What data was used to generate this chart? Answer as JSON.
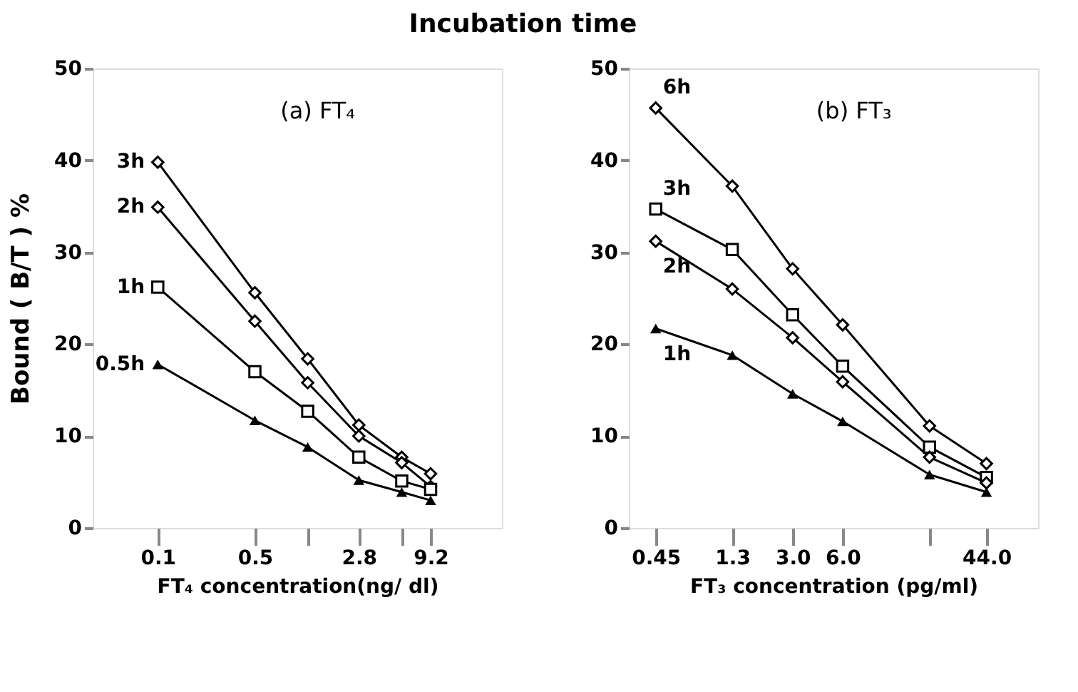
{
  "chart_data": [
    {
      "type": "line",
      "title": "Incubation time",
      "annotations": [
        "(a) FT₄"
      ],
      "xlabel": "FT₄ concentration(ng/ dl)",
      "ylabel": "Bound ( B/T ) %",
      "log": "x",
      "xlim": [
        0.034,
        30
      ],
      "xticks": [
        0.1,
        0.5,
        {
          "value": 1.2,
          "label": null
        },
        2.8,
        {
          "value": 5.7,
          "label": null
        },
        9.2
      ],
      "ylim": [
        0,
        50
      ],
      "yticks": [
        0,
        10,
        20,
        30,
        40,
        50
      ],
      "grid": false,
      "legend": false,
      "line_style": "solid",
      "x": [
        0.1,
        0.5,
        1.2,
        2.8,
        5.7,
        9.2
      ],
      "series": [
        {
          "name": "3h",
          "color": "#000000",
          "marker": "diamond",
          "values": [
            39.8,
            25.6,
            18.4,
            11.2,
            7.7,
            5.9
          ]
        },
        {
          "name": "2h",
          "color": "#000000",
          "marker": "diamond",
          "values": [
            34.9,
            22.5,
            15.8,
            10.0,
            7.1,
            4.5
          ]
        },
        {
          "name": "1h",
          "color": "#000000",
          "marker": "square",
          "values": [
            26.2,
            17.0,
            12.7,
            7.7,
            5.1,
            4.2
          ]
        },
        {
          "name": "0.5h",
          "color": "#000000",
          "marker": "triangle",
          "values": [
            17.8,
            11.7,
            8.8,
            5.2,
            3.9,
            3.0
          ]
        }
      ]
    },
    {
      "type": "line",
      "annotations": [
        "(b) FT₃"
      ],
      "xlabel": "FT₃ concentration (pg/ml)",
      "log": "x",
      "xlim": [
        0.31,
        90
      ],
      "xticks": [
        0.45,
        1.3,
        {
          "value": 3.0,
          "label": "3.0"
        },
        {
          "value": 6.0,
          "label": "6.0"
        },
        {
          "value": 20,
          "label": null
        },
        {
          "value": 44.0,
          "label": "44.0"
        }
      ],
      "ylim": [
        0,
        50
      ],
      "yticks": [
        0,
        10,
        20,
        30,
        40,
        50
      ],
      "grid": false,
      "legend": false,
      "line_style": "solid",
      "x": [
        0.45,
        1.3,
        3.0,
        6.0,
        20,
        44.0
      ],
      "series": [
        {
          "name": "6h",
          "color": "#000000",
          "marker": "diamond",
          "values": [
            45.7,
            37.2,
            28.2,
            22.1,
            11.1,
            7.0
          ]
        },
        {
          "name": "3h",
          "color": "#000000",
          "marker": "square",
          "values": [
            34.7,
            30.3,
            23.2,
            17.6,
            8.8,
            5.5
          ]
        },
        {
          "name": "2h",
          "color": "#000000",
          "marker": "diamond",
          "values": [
            31.2,
            26.0,
            20.7,
            15.9,
            7.7,
            4.9
          ]
        },
        {
          "name": "1h",
          "color": "#000000",
          "marker": "triangle",
          "values": [
            21.7,
            18.8,
            14.6,
            11.6,
            5.8,
            3.9
          ]
        }
      ]
    }
  ]
}
